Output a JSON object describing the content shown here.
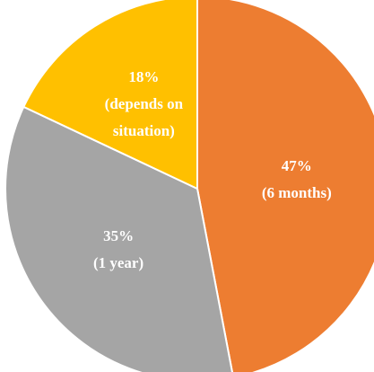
{
  "chart_data": {
    "type": "pie",
    "categories": [
      "(6 months)",
      "(1 year)",
      "(depends on situation)"
    ],
    "values": [
      47,
      35,
      18
    ],
    "value_labels": [
      "47%",
      "35%",
      "18%"
    ],
    "colors": [
      "#ed7d31",
      "#a5a5a5",
      "#ffc000"
    ]
  }
}
